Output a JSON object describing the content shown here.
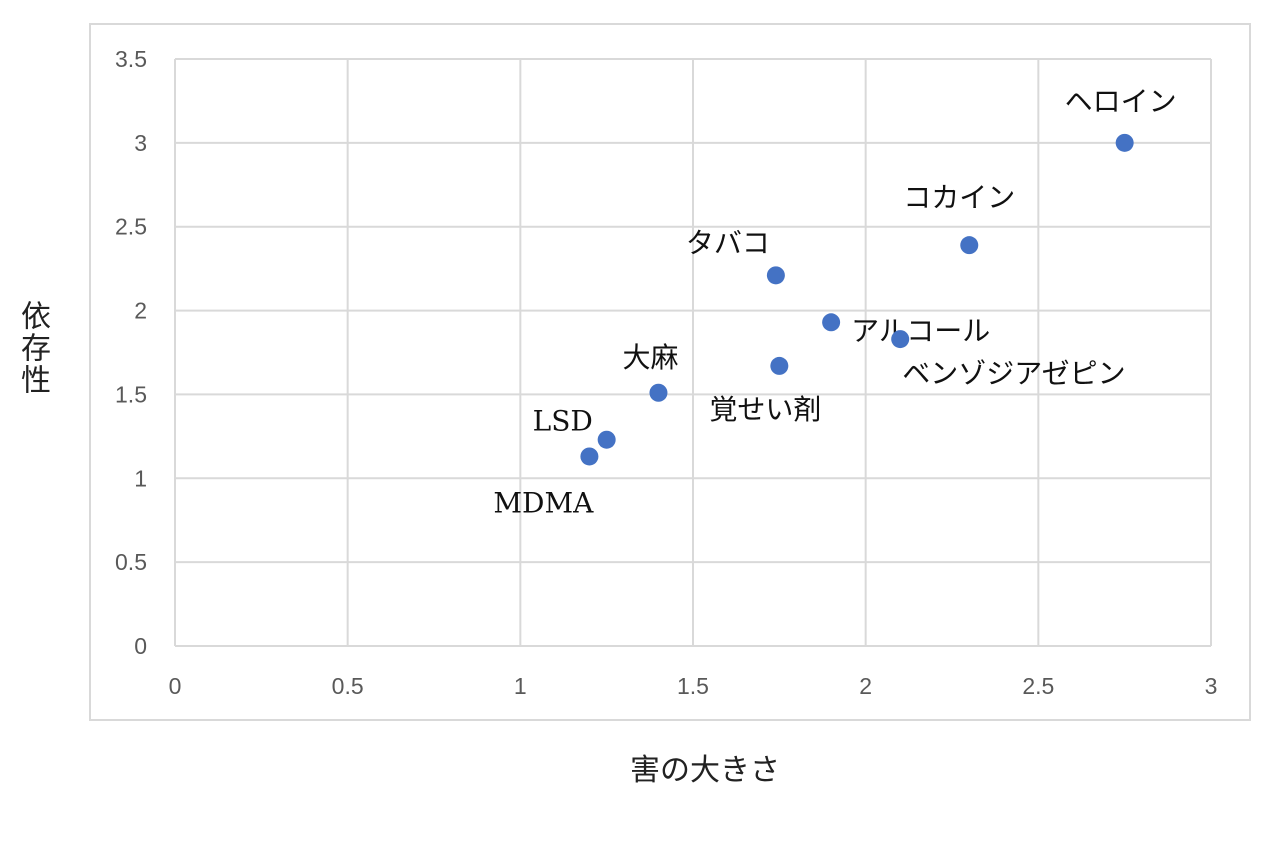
{
  "chart_data": {
    "type": "scatter",
    "xlabel": "害の大きさ",
    "ylabel": "依存性",
    "xlim": [
      0,
      3
    ],
    "ylim": [
      0,
      3.5
    ],
    "xticks": [
      "0",
      "0.5",
      "1",
      "1.5",
      "2",
      "2.5",
      "3"
    ],
    "yticks": [
      "0",
      "0.5",
      "1",
      "1.5",
      "2",
      "2.5",
      "3",
      "3.5"
    ],
    "grid": true,
    "marker_color": "#4472c4",
    "points": [
      {
        "label": "ヘロイン",
        "x": 2.75,
        "y": 3.0
      },
      {
        "label": "コカイン",
        "x": 2.3,
        "y": 2.39
      },
      {
        "label": "タバコ",
        "x": 1.74,
        "y": 2.21
      },
      {
        "label": "アルコール",
        "x": 1.9,
        "y": 1.93
      },
      {
        "label": "ベンゾジアゼピン",
        "x": 2.1,
        "y": 1.83
      },
      {
        "label": "覚せい剤",
        "x": 1.75,
        "y": 1.67
      },
      {
        "label": "大麻",
        "x": 1.4,
        "y": 1.51
      },
      {
        "label": "LSD",
        "x": 1.25,
        "y": 1.23
      },
      {
        "label": "MDMA",
        "x": 1.2,
        "y": 1.13
      }
    ]
  }
}
